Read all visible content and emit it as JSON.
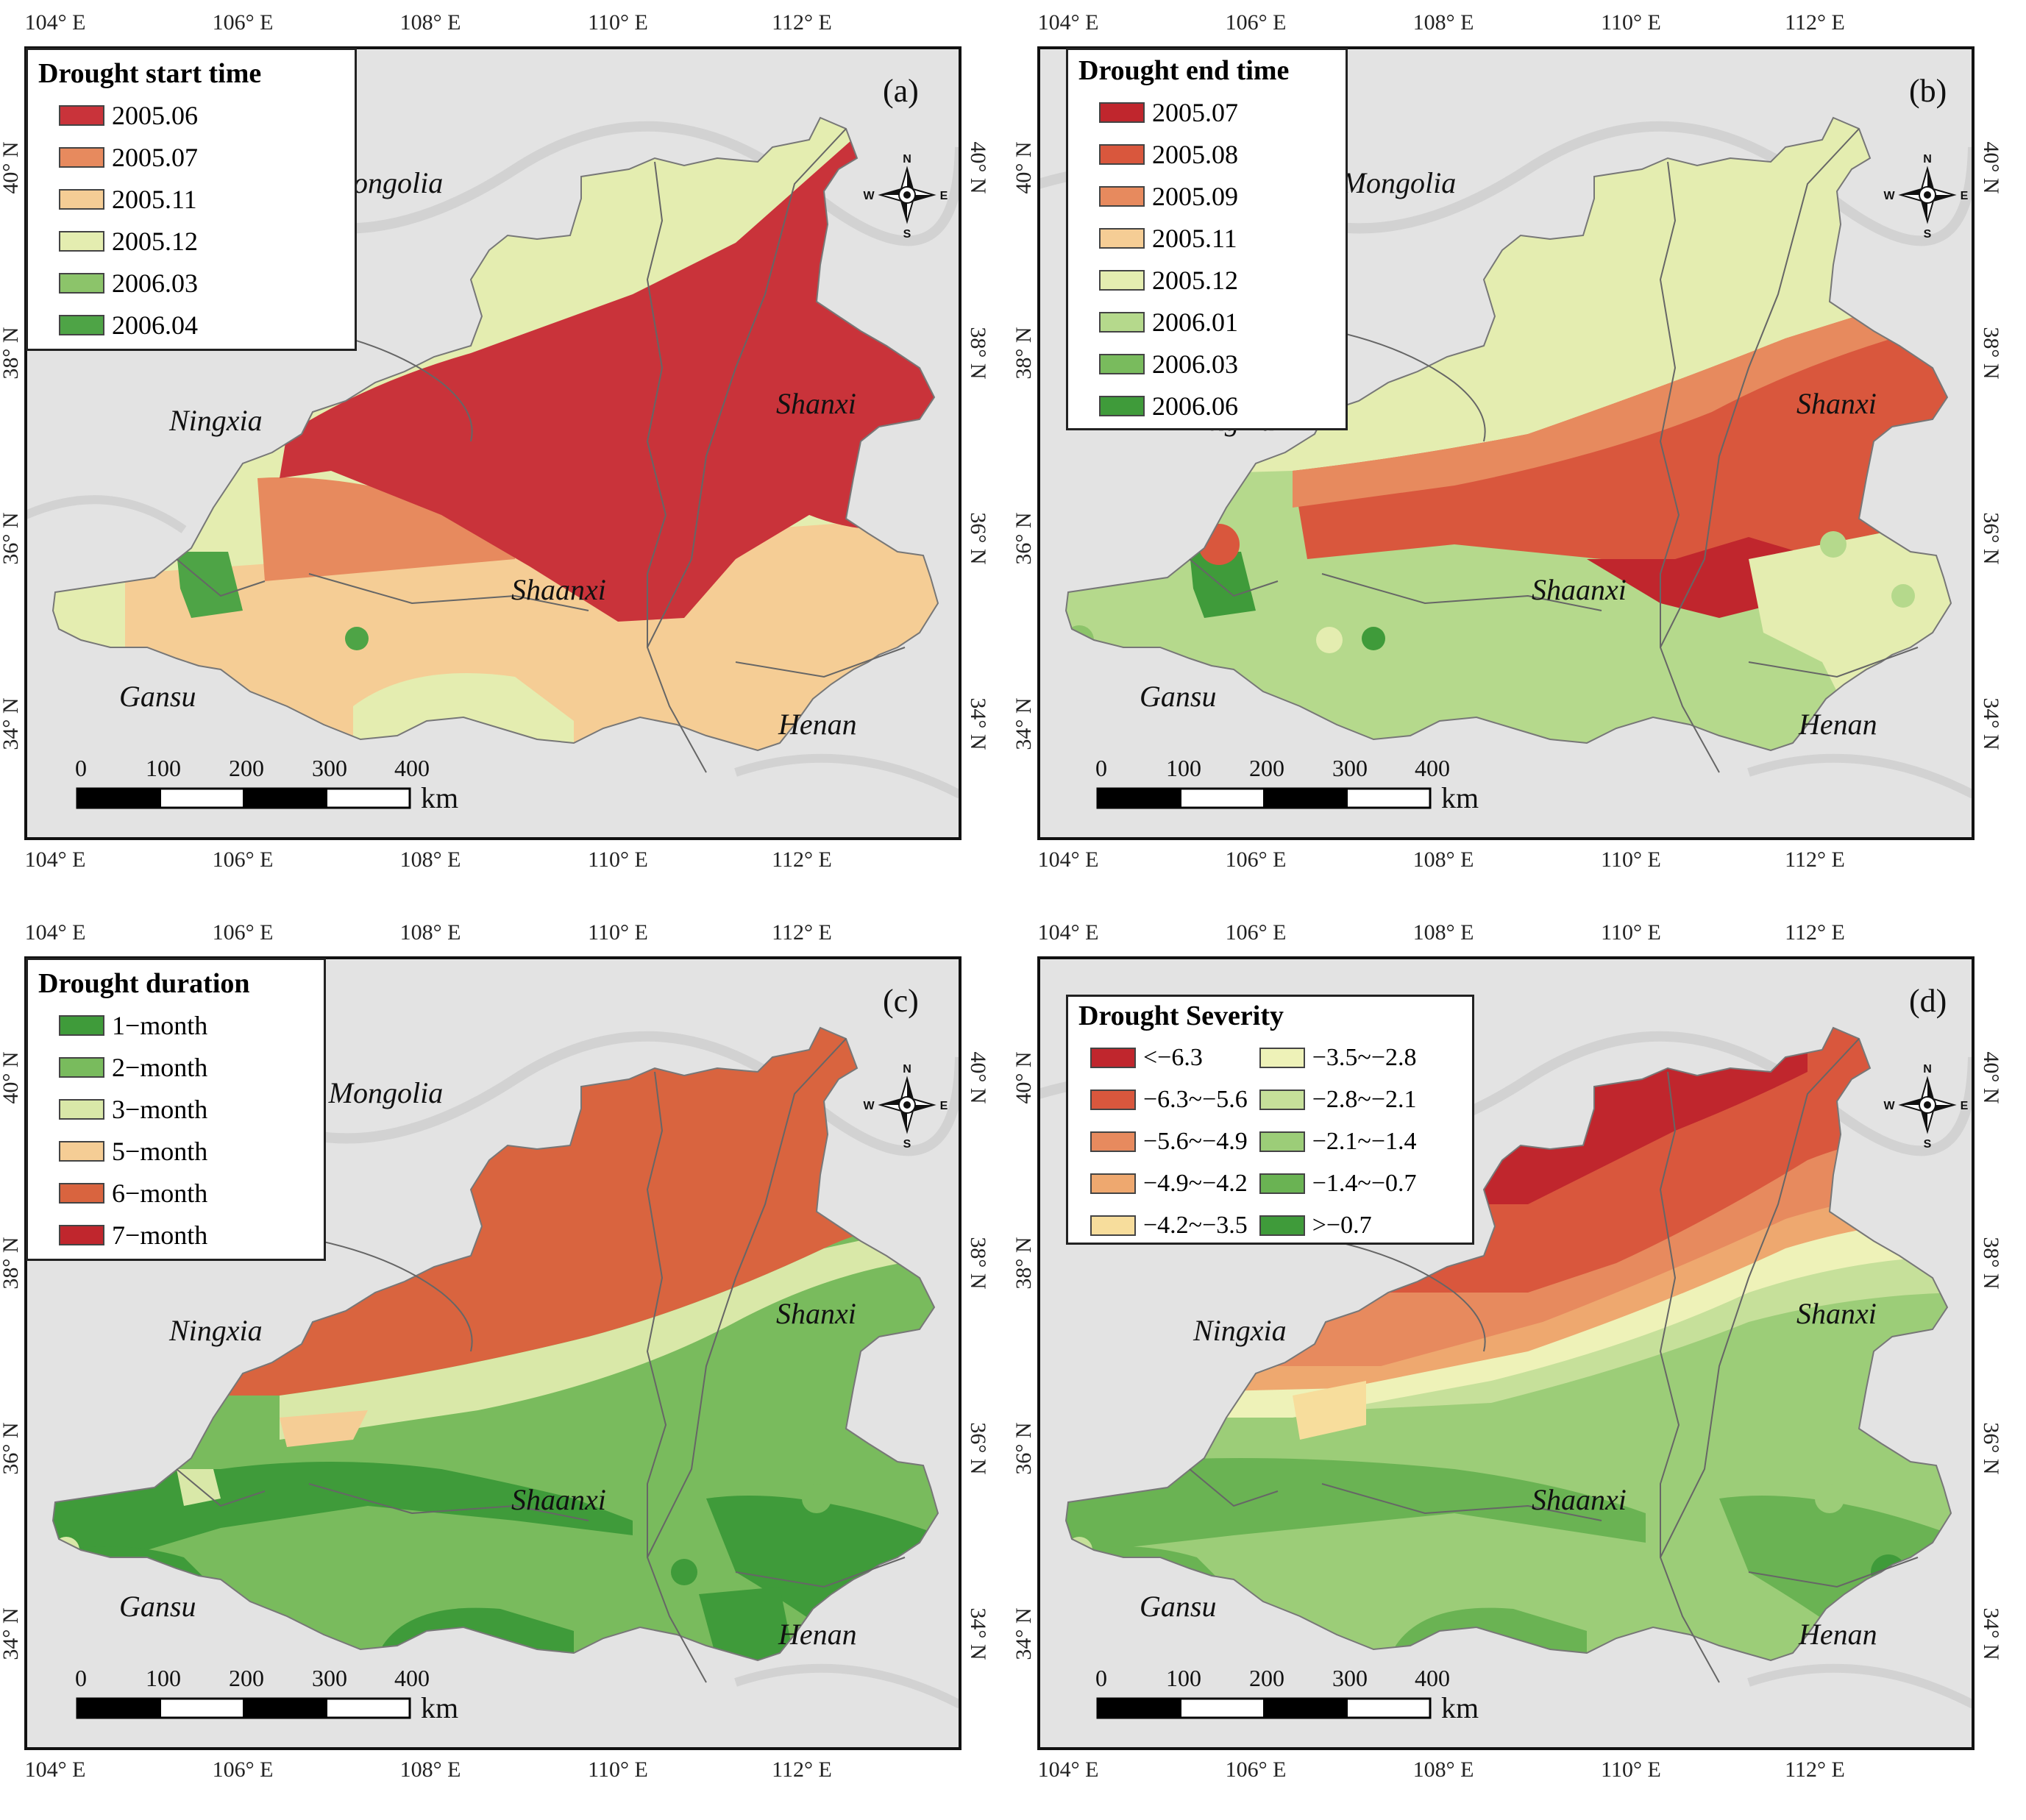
{
  "lon_ticks": [
    "104° E",
    "106° E",
    "108° E",
    "110° E",
    "112° E"
  ],
  "lat_ticks": [
    "40° N",
    "38° N",
    "36° N",
    "34° N"
  ],
  "places": {
    "inner_mongolia": "Inner Mongolia",
    "ningxia": "Ningxia",
    "shanxi": "Shanxi",
    "shaanxi": "Shaanxi",
    "gansu": "Gansu",
    "henan": "Henan"
  },
  "compass": {
    "n": "N",
    "s": "S",
    "e": "E",
    "w": "W"
  },
  "scale_bar": {
    "labels": [
      "0",
      "100",
      "200",
      "300",
      "400"
    ],
    "unit": "km"
  },
  "colors": {
    "red_dark": "#c0262d",
    "red": "#d9573d",
    "orange": "#e78a5e",
    "salmon": "#eea86f",
    "peach": "#f5cd95",
    "pale_yellow": "#e4edb0",
    "light_green": "#b5d98c",
    "mid_green": "#8cc46a",
    "green": "#67b152",
    "dark_green": "#3f9b3a",
    "basemap": "#e6e6e6"
  },
  "panels": [
    {
      "letter": "(a)",
      "legend_title": "Drought start time",
      "legend_items": [
        {
          "label": "2005.06",
          "color": "#c9333a"
        },
        {
          "label": "2005.07",
          "color": "#e78a5e"
        },
        {
          "label": "2005.11",
          "color": "#f5cd95"
        },
        {
          "label": "2005.12",
          "color": "#e4edb0"
        },
        {
          "label": "2006.03",
          "color": "#8cc46a"
        },
        {
          "label": "2006.04",
          "color": "#4ea446"
        }
      ]
    },
    {
      "letter": "(b)",
      "legend_title": "Drought end time",
      "legend_items": [
        {
          "label": "2005.07",
          "color": "#c0262d"
        },
        {
          "label": "2005.08",
          "color": "#d9573d"
        },
        {
          "label": "2005.09",
          "color": "#e78a5e"
        },
        {
          "label": "2005.11",
          "color": "#f5cd95"
        },
        {
          "label": "2005.12",
          "color": "#e4edb0"
        },
        {
          "label": "2006.01",
          "color": "#b5d98c"
        },
        {
          "label": "2006.03",
          "color": "#79bb5d"
        },
        {
          "label": "2006.06",
          "color": "#3f9b3a"
        }
      ]
    },
    {
      "letter": "(c)",
      "legend_title": "Drought duration",
      "legend_items": [
        {
          "label": "1−month",
          "color": "#3f9b3a"
        },
        {
          "label": "2−month",
          "color": "#79bb5d"
        },
        {
          "label": "3−month",
          "color": "#d9e8a8"
        },
        {
          "label": "5−month",
          "color": "#f5cd95"
        },
        {
          "label": "6−month",
          "color": "#d9643f"
        },
        {
          "label": "7−month",
          "color": "#c0262d"
        }
      ]
    },
    {
      "letter": "(d)",
      "legend_title": "Drought Severity",
      "legend_items": [
        {
          "label": "<−6.3",
          "color": "#c0262d"
        },
        {
          "label": "−6.3~−5.6",
          "color": "#d9573d"
        },
        {
          "label": "−5.6~−4.9",
          "color": "#e78a5e"
        },
        {
          "label": "−4.9~−4.2",
          "color": "#eea86f"
        },
        {
          "label": "−4.2~−3.5",
          "color": "#f7dd9c"
        },
        {
          "label": "−3.5~−2.8",
          "color": "#eef2b8"
        },
        {
          "label": "−2.8~−2.1",
          "color": "#c6e09a"
        },
        {
          "label": "−2.1~−1.4",
          "color": "#9ccd78"
        },
        {
          "label": "−1.4~−0.7",
          "color": "#6ab353"
        },
        {
          "label": ">−0.7",
          "color": "#3f9b3a"
        }
      ]
    }
  ]
}
